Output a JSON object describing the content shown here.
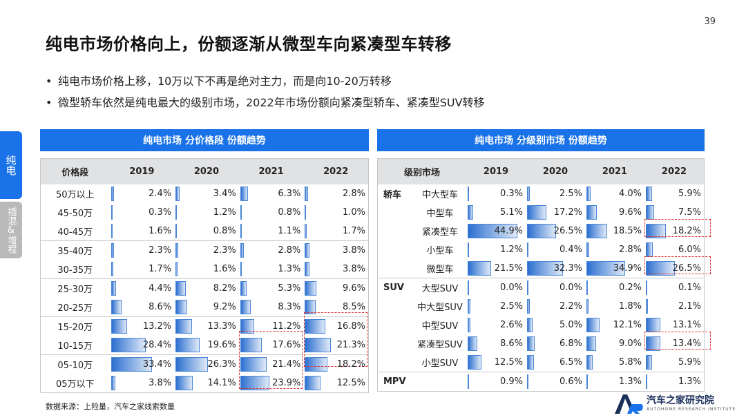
{
  "page_number": "39",
  "title": "纯电市场价格向上，份额逐渐从微型车向紧凑型车转移",
  "bullets": [
    "纯电市场价格上移，10万以下不再是绝对主力，而是向10-20万转移",
    "微型轿车依然是纯电最大的级别市场，2022年市场份额向紧凑型轿车、紧凑型SUV转移"
  ],
  "side_tabs": {
    "active": "纯电",
    "inactive": "插混&增程"
  },
  "left_panel": {
    "title": "纯电市场 分价格段 份额趋势",
    "headers": [
      "价格段",
      "2019",
      "2020",
      "2021",
      "2022"
    ],
    "rows": [
      {
        "label": "50万以上",
        "values": [
          "2.4%",
          "3.4%",
          "6.3%",
          "2.8%"
        ],
        "shares": [
          2.4,
          3.4,
          6.3,
          2.8
        ]
      },
      {
        "label": "45-50万",
        "values": [
          "0.3%",
          "1.2%",
          "0.8%",
          "1.0%"
        ],
        "shares": [
          0.3,
          1.2,
          0.8,
          1.0
        ]
      },
      {
        "label": "40-45万",
        "values": [
          "1.6%",
          "0.8%",
          "1.1%",
          "1.7%"
        ],
        "shares": [
          1.6,
          0.8,
          1.1,
          1.7
        ]
      },
      {
        "label": "35-40万",
        "values": [
          "2.3%",
          "2.3%",
          "2.8%",
          "3.8%"
        ],
        "shares": [
          2.3,
          2.3,
          2.8,
          3.8
        ]
      },
      {
        "label": "30-35万",
        "values": [
          "1.7%",
          "1.6%",
          "1.3%",
          "3.8%"
        ],
        "shares": [
          1.7,
          1.6,
          1.3,
          3.8
        ]
      },
      {
        "label": "25-30万",
        "values": [
          "4.4%",
          "8.2%",
          "5.3%",
          "9.6%"
        ],
        "shares": [
          4.4,
          8.2,
          5.3,
          9.6
        ]
      },
      {
        "label": "20-25万",
        "values": [
          "8.6%",
          "9.2%",
          "8.3%",
          "8.5%"
        ],
        "shares": [
          8.6,
          9.2,
          8.3,
          8.5
        ]
      },
      {
        "label": "15-20万",
        "values": [
          "13.2%",
          "13.3%",
          "11.2%",
          "16.8%"
        ],
        "shares": [
          13.2,
          13.3,
          11.2,
          16.8
        ]
      },
      {
        "label": "10-15万",
        "values": [
          "28.4%",
          "19.6%",
          "17.6%",
          "21.3%"
        ],
        "shares": [
          28.4,
          19.6,
          17.6,
          21.3
        ]
      },
      {
        "label": "05-10万",
        "values": [
          "33.4%",
          "26.3%",
          "21.4%",
          "18.2%"
        ],
        "shares": [
          33.4,
          26.3,
          21.4,
          18.2
        ]
      },
      {
        "label": "05万以下",
        "values": [
          "3.8%",
          "14.1%",
          "23.9%",
          "12.5%"
        ],
        "shares": [
          3.8,
          14.1,
          23.9,
          12.5
        ]
      }
    ]
  },
  "right_panel": {
    "title": "纯电市场 分级别市场 份额趋势",
    "headers": [
      "级别市场",
      "2019",
      "2020",
      "2021",
      "2022"
    ],
    "rows": [
      {
        "group": "轿车",
        "label": "中大型车",
        "values": [
          "0.3%",
          "2.5%",
          "4.0%",
          "5.9%"
        ],
        "shares": [
          0.3,
          2.5,
          4.0,
          5.9
        ]
      },
      {
        "group": "",
        "label": "中型车",
        "values": [
          "5.1%",
          "17.2%",
          "9.6%",
          "7.5%"
        ],
        "shares": [
          5.1,
          17.2,
          9.6,
          7.5
        ]
      },
      {
        "group": "",
        "label": "紧凑型车",
        "values": [
          "44.9%",
          "26.5%",
          "18.5%",
          "18.2%"
        ],
        "shares": [
          44.9,
          26.5,
          18.5,
          18.2
        ]
      },
      {
        "group": "",
        "label": "小型车",
        "values": [
          "1.2%",
          "0.4%",
          "2.8%",
          "6.0%"
        ],
        "shares": [
          1.2,
          0.4,
          2.8,
          6.0
        ]
      },
      {
        "group": "",
        "label": "微型车",
        "values": [
          "21.5%",
          "32.3%",
          "34.9%",
          "26.5%"
        ],
        "shares": [
          21.5,
          32.3,
          34.9,
          26.5
        ]
      },
      {
        "group": "SUV",
        "label": "大型SUV",
        "values": [
          "0.0%",
          "0.0%",
          "0.2%",
          "0.1%"
        ],
        "shares": [
          0.0,
          0.0,
          0.2,
          0.1
        ]
      },
      {
        "group": "",
        "label": "中大型SUV",
        "values": [
          "2.5%",
          "2.2%",
          "1.8%",
          "2.1%"
        ],
        "shares": [
          2.5,
          2.2,
          1.8,
          2.1
        ]
      },
      {
        "group": "",
        "label": "中型SUV",
        "values": [
          "2.6%",
          "5.0%",
          "12.1%",
          "13.1%"
        ],
        "shares": [
          2.6,
          5.0,
          12.1,
          13.1
        ]
      },
      {
        "group": "",
        "label": "紧凑型SUV",
        "values": [
          "8.6%",
          "6.8%",
          "9.0%",
          "13.4%"
        ],
        "shares": [
          8.6,
          6.8,
          9.0,
          13.4
        ]
      },
      {
        "group": "",
        "label": "小型SUV",
        "values": [
          "12.5%",
          "6.5%",
          "5.8%",
          "5.9%"
        ],
        "shares": [
          12.5,
          6.5,
          5.8,
          5.9
        ]
      },
      {
        "group": "MPV",
        "label": "",
        "values": [
          "0.9%",
          "0.6%",
          "1.3%",
          "1.3%"
        ],
        "shares": [
          0.9,
          0.6,
          1.3,
          1.3
        ]
      }
    ]
  },
  "source_note": "数据来源：上险量，汽车之家线索数量",
  "logo": {
    "name": "汽车之家研究院",
    "sub": "AUTOHOME RESEARCH INSTITUTE"
  },
  "colors": {
    "accent": "#1a72e8",
    "bar": "#2c6fd0",
    "highlight": "#e03030",
    "inactive_tab": "#b9b9b9"
  }
}
